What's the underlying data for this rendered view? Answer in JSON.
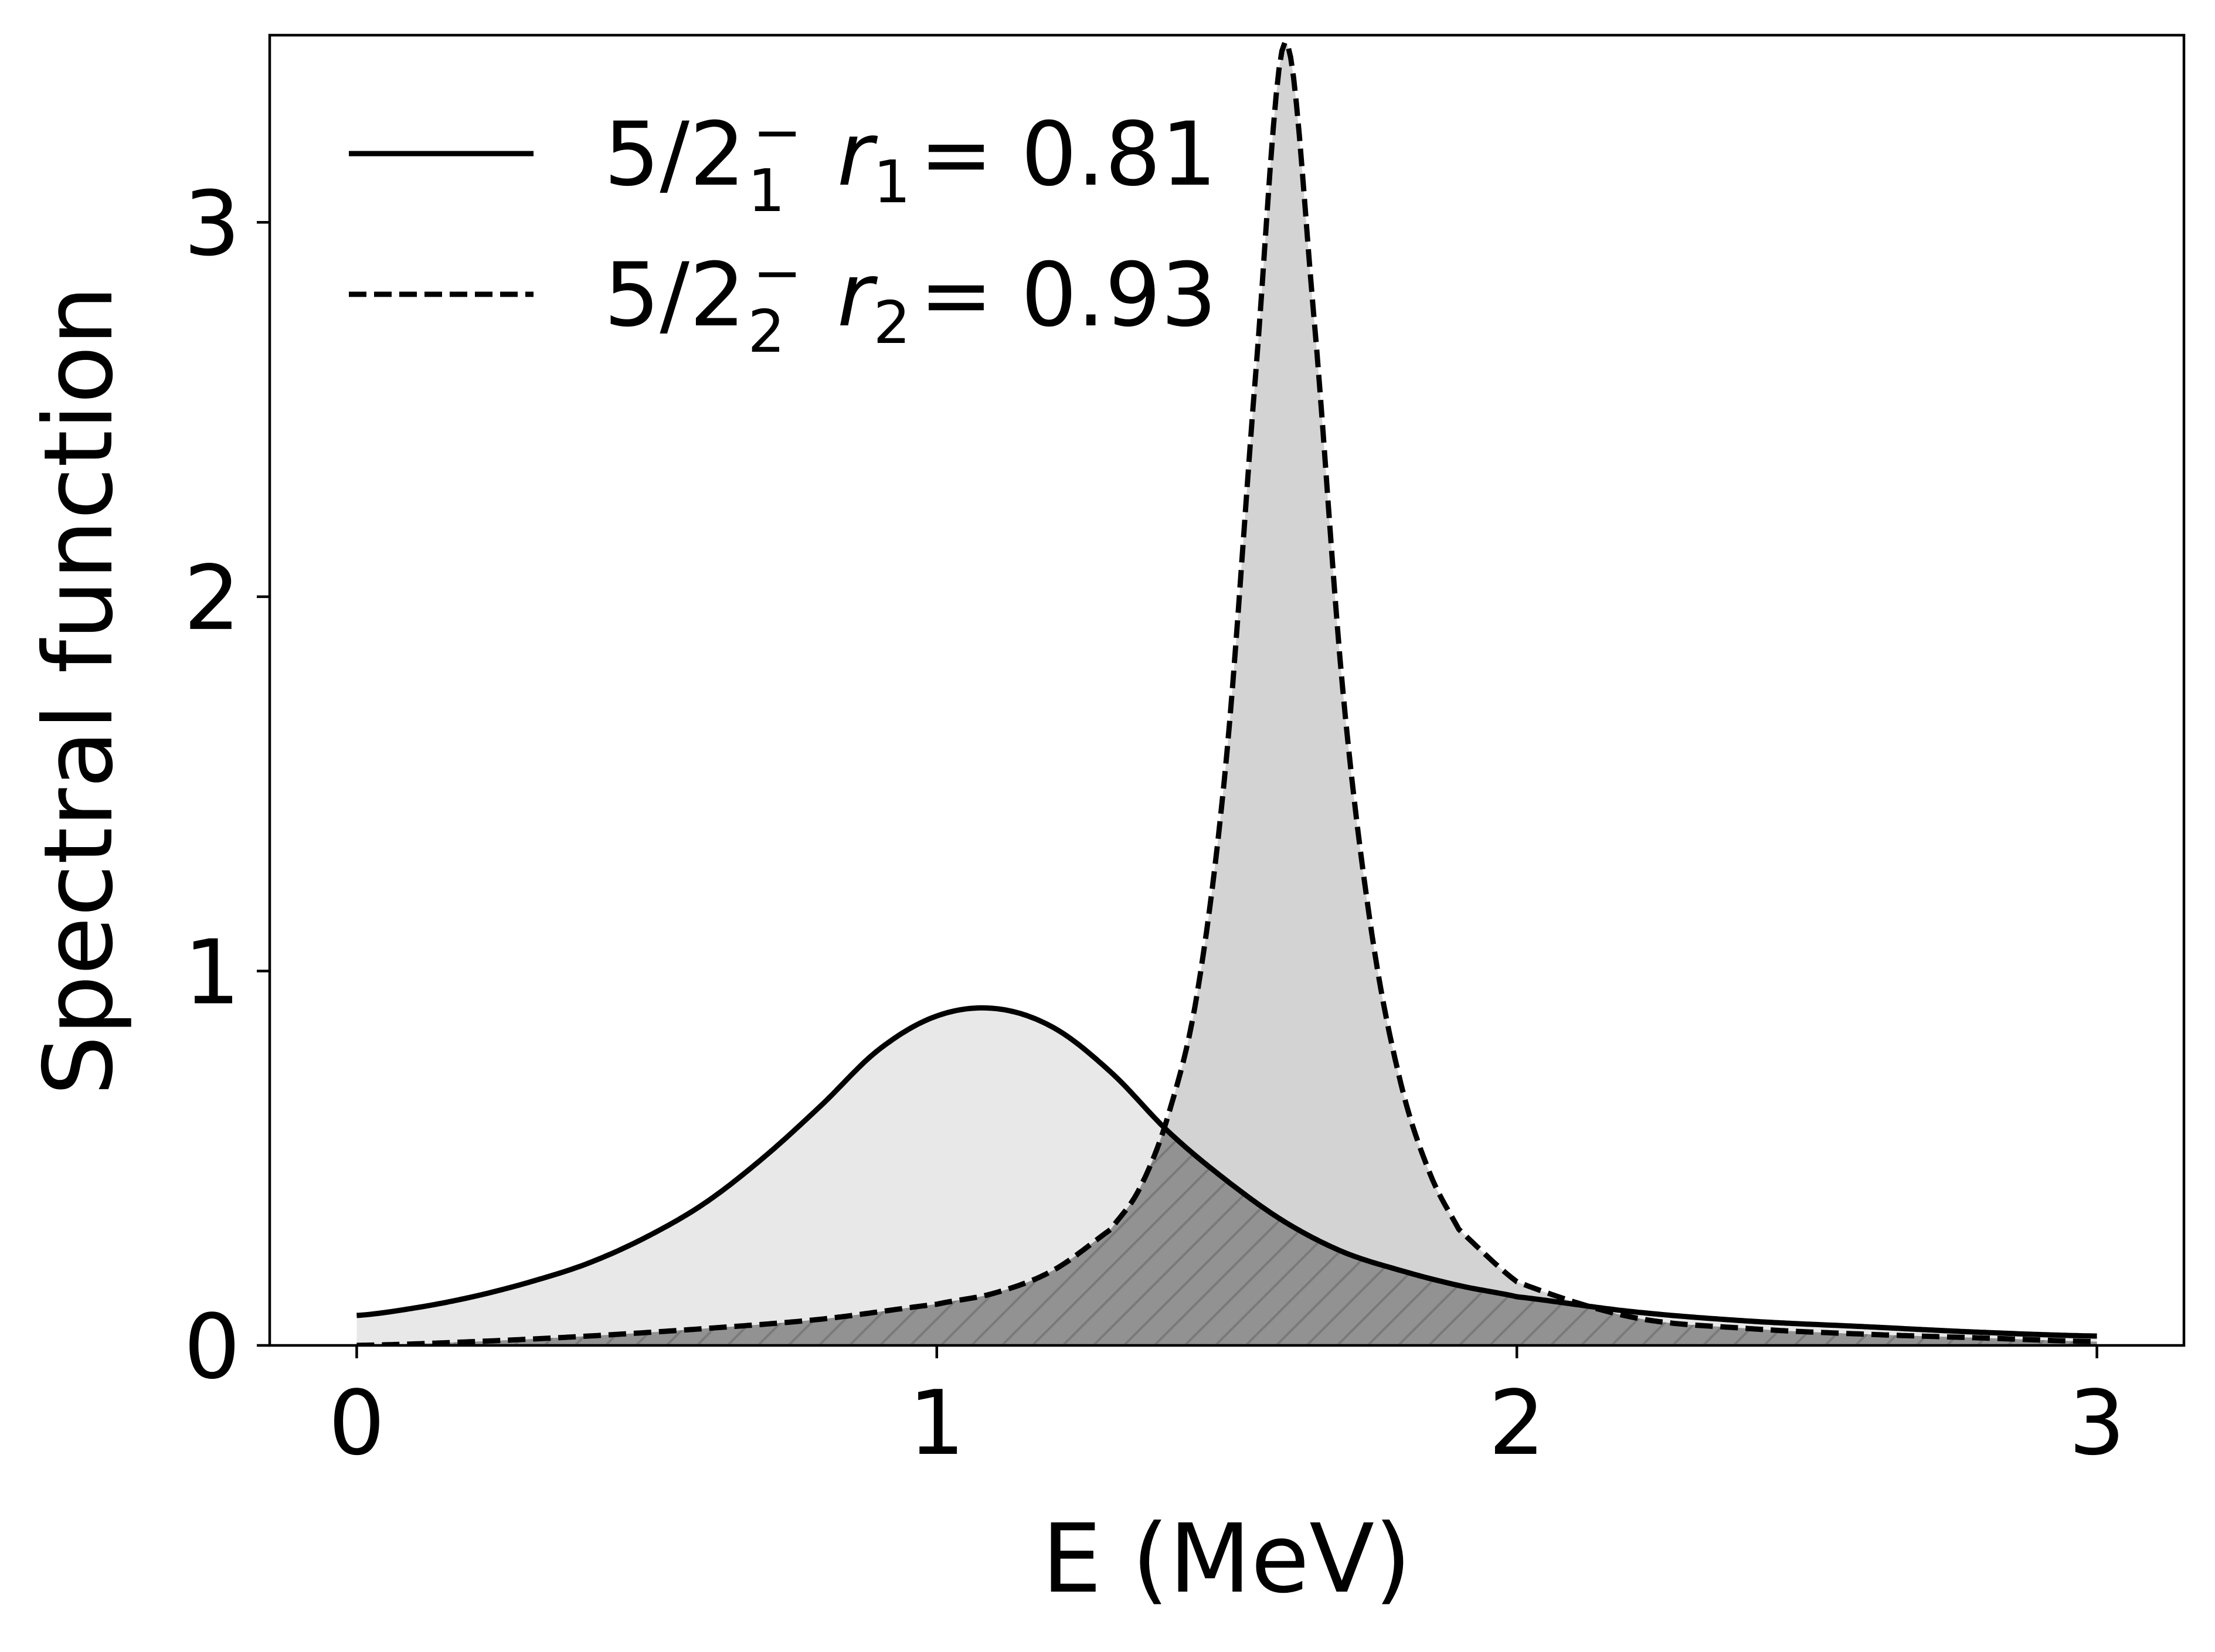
{
  "chart_data": {
    "type": "line",
    "title": "",
    "xlabel": "E (MeV)",
    "ylabel": "Spectral function",
    "xlim": [
      -0.15,
      3.15
    ],
    "ylim": [
      0,
      3.5
    ],
    "xticks": [
      0,
      1,
      2,
      3
    ],
    "yticks": [
      0,
      1,
      2,
      3
    ],
    "grid": false,
    "legend_position": "top-left",
    "series": [
      {
        "name": "5/2₁⁻ r₁ = 0.81",
        "label_parts": {
          "j": "5/2",
          "sub": "1",
          "sup": "−",
          "r": "r",
          "rsub": "1",
          "value": "= 0.81"
        },
        "line_style": "solid",
        "fill_color": "#e8e8e8",
        "x": [
          0.0,
          0.1,
          0.2,
          0.3,
          0.4,
          0.5,
          0.6,
          0.7,
          0.8,
          0.9,
          1.0,
          1.1,
          1.2,
          1.3,
          1.4,
          1.5,
          1.6,
          1.7,
          1.8,
          1.9,
          2.0,
          2.2,
          2.4,
          2.6,
          2.8,
          3.0
        ],
        "values": [
          0.08,
          0.1,
          0.13,
          0.17,
          0.22,
          0.29,
          0.38,
          0.5,
          0.64,
          0.79,
          0.88,
          0.9,
          0.85,
          0.73,
          0.57,
          0.44,
          0.33,
          0.25,
          0.2,
          0.16,
          0.13,
          0.09,
          0.065,
          0.05,
          0.035,
          0.025
        ]
      },
      {
        "name": "5/2₂⁻ r₂ = 0.93",
        "label_parts": {
          "j": "5/2",
          "sub": "2",
          "sup": "−",
          "r": "r",
          "rsub": "2",
          "value": "= 0.93"
        },
        "line_style": "dashed",
        "fill_color": "#d3d3d3",
        "x": [
          0.0,
          0.2,
          0.4,
          0.6,
          0.8,
          1.0,
          1.1,
          1.2,
          1.3,
          1.35,
          1.4,
          1.45,
          1.5,
          1.55,
          1.6,
          1.65,
          1.7,
          1.75,
          1.8,
          1.85,
          1.9,
          2.0,
          2.2,
          2.4,
          2.6,
          2.8,
          3.0
        ],
        "values": [
          0.0,
          0.01,
          0.025,
          0.045,
          0.07,
          0.11,
          0.14,
          0.2,
          0.31,
          0.42,
          0.62,
          0.95,
          1.58,
          2.6,
          3.48,
          2.75,
          1.75,
          1.1,
          0.7,
          0.46,
          0.31,
          0.17,
          0.075,
          0.045,
          0.03,
          0.02,
          0.01
        ]
      }
    ],
    "overlap_fill": {
      "color": "#929292",
      "hatch": "diagonal"
    }
  }
}
